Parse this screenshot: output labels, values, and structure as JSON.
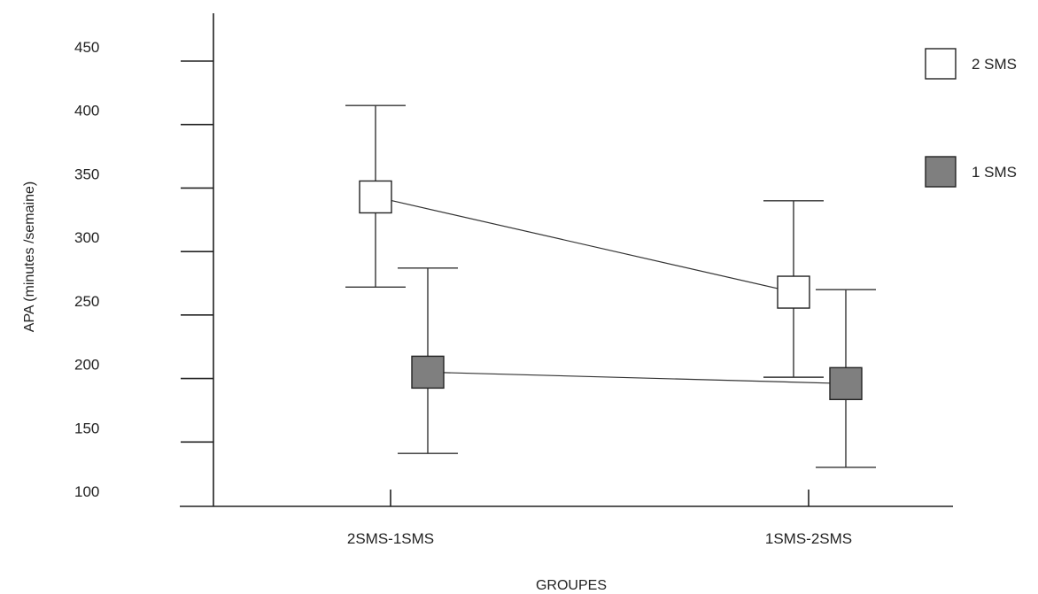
{
  "chart_data": {
    "type": "line",
    "title": "",
    "xlabel": "GROUPES",
    "ylabel": "APA (minutes /semaine)",
    "categories": [
      "2SMS-1SMS",
      "1SMS-2SMS"
    ],
    "ylim": [
      100,
      470
    ],
    "yticks": [
      100,
      150,
      200,
      250,
      300,
      350,
      400,
      450
    ],
    "grid": false,
    "legend_position": "top-right",
    "series": [
      {
        "name": "2 SMS",
        "color": "#ffffff",
        "values": [
          343,
          268
        ],
        "error_low": [
          272,
          201
        ],
        "error_high": [
          415,
          340
        ]
      },
      {
        "name": "1 SMS",
        "color": "#7f7f7f",
        "values": [
          205,
          196
        ],
        "error_low": [
          141,
          130
        ],
        "error_high": [
          287,
          270
        ]
      }
    ]
  }
}
